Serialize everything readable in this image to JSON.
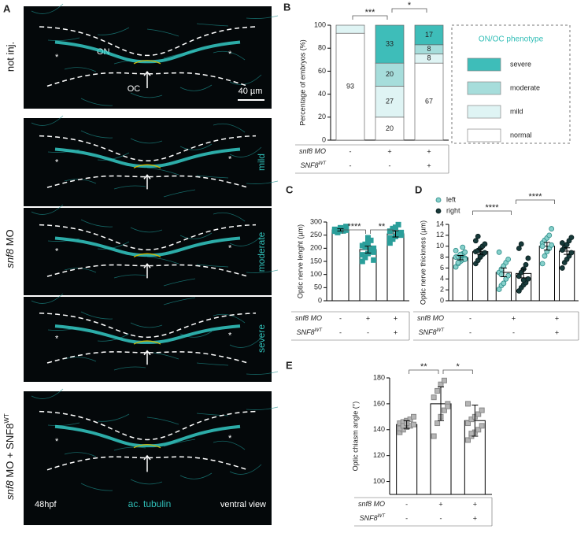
{
  "panel_a": {
    "letter": "A",
    "star": "*",
    "images": [
      {
        "label": "not inj.",
        "on": "ON",
        "oc": "OC",
        "scale": "40 µm"
      },
      {
        "label": {
          "name": "snf8",
          "rest": "MO"
        },
        "grades": [
          "mild",
          "moderate",
          "severe"
        ]
      },
      {
        "label": {
          "name": "snf8",
          "rest": "MO + SNF8",
          "sup": "WT"
        },
        "stage": "48hpf",
        "stain": "ac. tubulin",
        "view": "ventral view"
      }
    ]
  },
  "chart_data": [
    {
      "panel": "B",
      "type": "bar",
      "stacked": true,
      "ylabel": "Percentage of embryos (%)",
      "ylim": [
        0,
        100
      ],
      "yticks": [
        0,
        20,
        40,
        60,
        80,
        100
      ],
      "series": [
        {
          "name": "normal",
          "color": "#ffffff",
          "values": [
            93,
            20,
            67
          ],
          "value_labels": [
            "93",
            "20",
            "67"
          ]
        },
        {
          "name": "mild",
          "color": "#dff4f4",
          "values": [
            7,
            27,
            8
          ],
          "value_labels": [
            null,
            "27",
            "8"
          ]
        },
        {
          "name": "moderate",
          "color": "#a6dddb",
          "values": [
            0,
            20,
            8
          ],
          "value_labels": [
            null,
            "20",
            "8"
          ]
        },
        {
          "name": "severe",
          "color": "#3ebdb9",
          "values": [
            0,
            33,
            17
          ],
          "value_labels": [
            null,
            "33",
            "17"
          ]
        }
      ],
      "legend_title": "ON/OC phenotype",
      "significance": [
        "***",
        "*"
      ],
      "table": [
        {
          "name": "snf8 MO",
          "cells": [
            "-",
            "+",
            "+"
          ]
        },
        {
          "name": "SNF8",
          "sup": "WT",
          "cells": [
            "-",
            "-",
            "+"
          ]
        }
      ]
    },
    {
      "panel": "C",
      "type": "bar",
      "ylabel": "Optic nerve lenght (µm)",
      "ylim": [
        0,
        300
      ],
      "yticks": [
        0,
        50,
        100,
        150,
        200,
        250,
        300
      ],
      "values": [
        270,
        195,
        255
      ],
      "errors": [
        4,
        13,
        12
      ],
      "color": "#ffffff",
      "point_color": "#2a9e9a",
      "marker": "square",
      "points": [
        [
          265,
          270,
          275,
          268,
          280,
          272,
          260,
          278,
          266,
          283,
          270,
          262,
          276,
          271,
          269
        ],
        [
          150,
          165,
          180,
          190,
          200,
          210,
          215,
          220,
          230,
          185,
          175,
          205,
          240,
          195,
          155
        ],
        [
          220,
          235,
          245,
          255,
          260,
          265,
          270,
          280,
          290,
          250,
          240,
          275
        ]
      ],
      "significance": [
        "****",
        "**"
      ],
      "table": [
        {
          "name": "snf8 MO",
          "cells": [
            "-",
            "+",
            "+"
          ]
        },
        {
          "name": "SNF8",
          "sup": "WT",
          "cells": [
            "-",
            "-",
            "+"
          ]
        }
      ]
    },
    {
      "panel": "D",
      "type": "bar",
      "ylabel": "Optic nerve thickness (µm)",
      "ylim": [
        0,
        14
      ],
      "yticks": [
        0,
        2,
        4,
        6,
        8,
        10,
        12,
        14
      ],
      "marker": "circle",
      "series": [
        {
          "name": "left",
          "color": "#86d0cb",
          "values": [
            7.9,
            5.2,
            10.0
          ],
          "errors": [
            0.4,
            0.8,
            0.7
          ],
          "points": [
            [
              6.2,
              6.8,
              7.2,
              7.5,
              7.8,
              8.0,
              8.1,
              8.3,
              8.6,
              8.9,
              9.2,
              7.0,
              8.5,
              9.8,
              7.6
            ],
            [
              2.1,
              2.8,
              3.2,
              4.0,
              4.6,
              5.2,
              5.8,
              6.4,
              7.0,
              7.6,
              8.9,
              4.8
            ],
            [
              6.8,
              8.2,
              9.0,
              9.6,
              10.2,
              10.6,
              11.1,
              11.5,
              12.0,
              13.2,
              10.0
            ]
          ]
        },
        {
          "name": "right",
          "color": "#173a3a",
          "values": [
            9.0,
            5.0,
            9.1
          ],
          "errors": [
            0.5,
            0.8,
            0.6
          ],
          "points": [
            [
              6.8,
              7.4,
              8.0,
              8.5,
              8.8,
              9.0,
              9.2,
              9.6,
              10.0,
              10.4,
              11.0,
              11.8,
              8.2
            ],
            [
              1.8,
              2.4,
              2.9,
              3.3,
              4.0,
              4.5,
              5.2,
              5.8,
              6.6,
              7.8,
              9.6,
              10.4,
              3.8
            ],
            [
              6.0,
              7.0,
              7.6,
              8.2,
              8.8,
              9.3,
              9.8,
              10.3,
              11.0,
              11.6,
              10.6
            ]
          ]
        }
      ],
      "significance": [
        "****",
        "****"
      ],
      "table": [
        {
          "name": "snf8 MO",
          "cells": [
            "-",
            "+",
            "+"
          ]
        },
        {
          "name": "SNF8",
          "sup": "WT",
          "cells": [
            "-",
            "-",
            "+"
          ]
        }
      ]
    },
    {
      "panel": "E",
      "type": "bar",
      "ylabel": "Optic chiasm angle (°)",
      "ylim": [
        90,
        180
      ],
      "yticks": [
        100,
        120,
        140,
        160,
        180
      ],
      "values": [
        144,
        160,
        147
      ],
      "errors": [
        3,
        13,
        12
      ],
      "color": "#ffffff",
      "point_color": "#b5b5b5",
      "marker": "square",
      "points": [
        [
          138,
          140,
          142,
          143,
          144,
          145,
          146,
          147,
          148,
          150,
          141,
          143,
          145
        ],
        [
          135,
          145,
          150,
          155,
          160,
          165,
          170,
          175,
          178,
          158
        ],
        [
          132,
          135,
          138,
          140,
          143,
          145,
          148,
          150,
          152,
          155,
          160,
          137
        ]
      ],
      "significance": [
        "**",
        "*"
      ],
      "table": [
        {
          "name": "snf8 MO",
          "cells": [
            "-",
            "+",
            "+"
          ]
        },
        {
          "name": "SNF8",
          "sup": "WT",
          "cells": [
            "-",
            "-",
            "+"
          ]
        }
      ]
    }
  ]
}
